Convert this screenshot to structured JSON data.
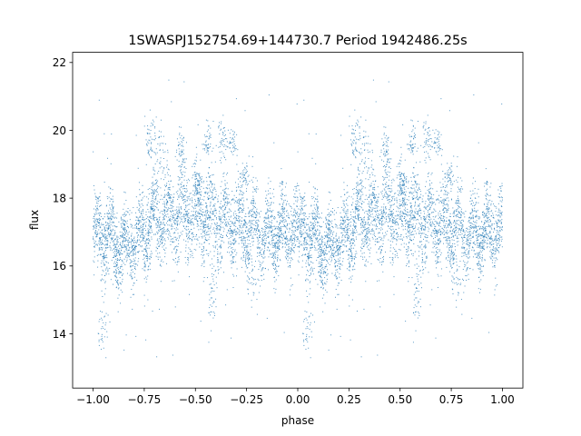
{
  "chart_data": {
    "type": "scatter",
    "title": "1SWASPJ152754.69+144730.7 Period 1942486.25s",
    "xlabel": "phase",
    "ylabel": "flux",
    "xlim": [
      -1.1,
      1.1
    ],
    "ylim": [
      12.4,
      22.3
    ],
    "xticks": [
      -1.0,
      -0.75,
      -0.5,
      -0.25,
      0.0,
      0.25,
      0.5,
      0.75,
      1.0
    ],
    "xtick_labels": [
      "−1.00",
      "−0.75",
      "−0.50",
      "−0.25",
      "0.00",
      "0.25",
      "0.50",
      "0.75",
      "1.00"
    ],
    "yticks": [
      14,
      16,
      18,
      20,
      22
    ],
    "ytick_labels": [
      "14",
      "16",
      "18",
      "20",
      "22"
    ],
    "grid": false,
    "legend": "none",
    "marker_color": "#1f77b4",
    "phase_profile": {
      "phase": [
        0.0,
        0.05,
        0.1,
        0.15,
        0.2,
        0.25,
        0.3,
        0.35,
        0.4,
        0.45,
        0.5,
        0.55,
        0.6,
        0.65,
        0.7,
        0.75,
        0.8,
        0.85,
        0.9,
        0.95,
        1.0
      ],
      "median_flux": [
        16.9,
        17.0,
        16.8,
        16.5,
        16.7,
        17.0,
        17.3,
        17.4,
        17.5,
        17.5,
        17.5,
        17.6,
        17.4,
        17.3,
        17.2,
        17.1,
        17.0,
        16.9,
        17.0,
        17.1,
        17.0
      ],
      "scatter": [
        0.55,
        0.6,
        0.55,
        0.5,
        0.5,
        0.55,
        0.55,
        0.55,
        0.65,
        0.7,
        0.7,
        0.7,
        0.65,
        0.6,
        0.6,
        0.6,
        0.55,
        0.55,
        0.55,
        0.6,
        0.55
      ]
    },
    "high_clumps": [
      {
        "phase": 0.28,
        "flux": 19.8,
        "spread": 0.35
      },
      {
        "phase": 0.33,
        "flux": 19.2,
        "spread": 0.4
      },
      {
        "phase": 0.43,
        "flux": 19.3,
        "spread": 0.3
      },
      {
        "phase": 0.51,
        "flux": 18.4,
        "spread": 0.3
      },
      {
        "phase": 0.56,
        "flux": 19.7,
        "spread": 0.3
      },
      {
        "phase": 0.63,
        "flux": 19.7,
        "spread": 0.3
      },
      {
        "phase": 0.68,
        "flux": 19.6,
        "spread": 0.3
      },
      {
        "phase": 0.74,
        "flux": 18.6,
        "spread": 0.3
      }
    ],
    "low_clumps": [
      {
        "phase": 0.05,
        "flux": 14.2,
        "spread": 0.4
      },
      {
        "phase": 0.12,
        "flux": 15.8,
        "spread": 0.3
      },
      {
        "phase": 0.58,
        "flux": 15.2,
        "spread": 0.6
      },
      {
        "phase": 0.78,
        "flux": 15.4,
        "spread": 0.4
      }
    ],
    "mirrored_about_phase": 0.0,
    "n_points_per_half": 4200
  }
}
